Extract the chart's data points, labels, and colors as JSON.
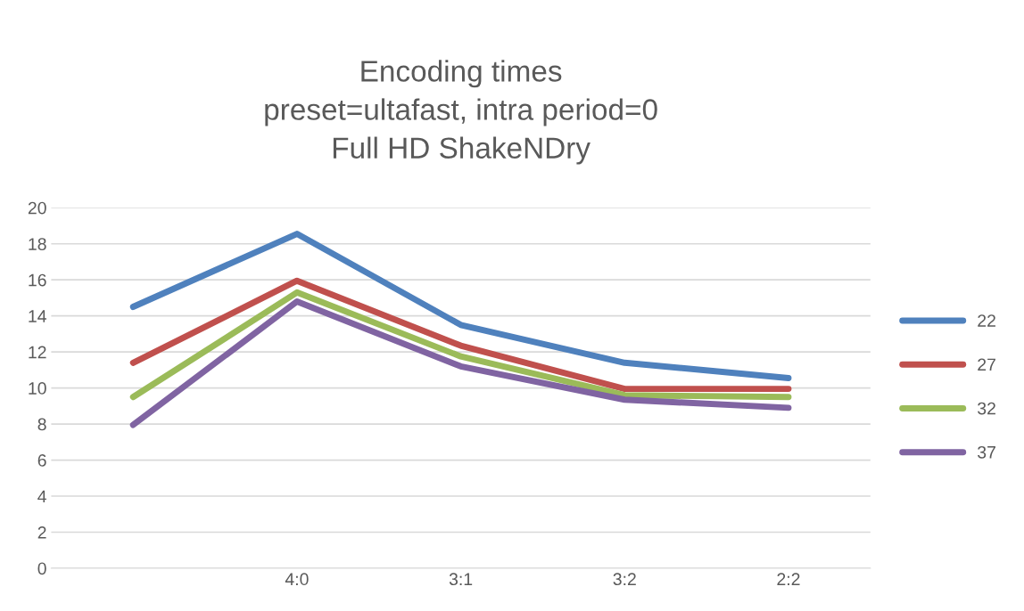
{
  "chart_data": {
    "type": "line",
    "title": "Encoding times\npreset=ultafast, intra period=0\nFull HD ShakeNDry",
    "categories": [
      null,
      "4:0",
      "3:1",
      "3:2",
      "2:2"
    ],
    "series": [
      {
        "name": "22",
        "color": "#4f81bd",
        "values": [
          14.5,
          18.55,
          13.5,
          11.4,
          10.55
        ]
      },
      {
        "name": "27",
        "color": "#c0504d",
        "values": [
          11.4,
          15.95,
          12.35,
          9.95,
          9.95
        ]
      },
      {
        "name": "32",
        "color": "#9bbb59",
        "values": [
          9.5,
          15.3,
          11.75,
          9.6,
          9.5
        ]
      },
      {
        "name": "37",
        "color": "#8064a2",
        "values": [
          7.95,
          14.8,
          11.2,
          9.35,
          8.9
        ]
      }
    ],
    "ylim": [
      0,
      20
    ],
    "yticks": [
      0,
      2,
      4,
      6,
      8,
      10,
      12,
      14,
      16,
      18,
      20
    ],
    "grid": "y",
    "legend": "right",
    "marker": "none",
    "line_style": "solid"
  }
}
